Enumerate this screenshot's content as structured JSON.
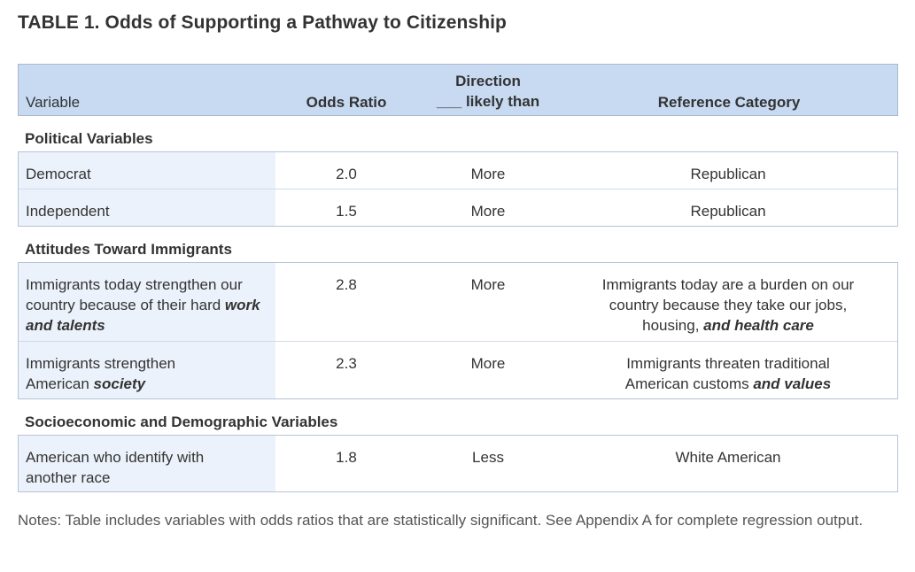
{
  "title": "TABLE 1. Odds of Supporting a Pathway to Citizenship",
  "header": {
    "variable": "Variable",
    "odds_ratio": "Odds Ratio",
    "direction_line1": "Direction",
    "direction_line2": "___ likely than",
    "reference": "Reference Category"
  },
  "sections": [
    {
      "title": "Political Variables",
      "rows": [
        {
          "var": "Democrat",
          "odds": "2.0",
          "dir": "More",
          "ref": "Republican"
        },
        {
          "var": "Independent",
          "odds": "1.5",
          "dir": "More",
          "ref": "Republican"
        }
      ]
    },
    {
      "title": "Attitudes Toward Immigrants",
      "rows": [
        {
          "var_plain": "Immigrants today strengthen our country because of their hard ",
          "var_em": "work and talents",
          "odds": "2.8",
          "dir": "More",
          "ref_plain": "Immigrants today are a burden on our country because they take our jobs, housing, ",
          "ref_em": "and health care"
        },
        {
          "var_plain": "Immigrants strengthen American ",
          "var_em": "society",
          "odds": "2.3",
          "dir": "More",
          "ref_plain": "Immigrants threaten traditional American customs ",
          "ref_em": "and values"
        }
      ]
    },
    {
      "title": "Socioeconomic and Demographic Variables",
      "rows": [
        {
          "var": "American who identify with another race",
          "odds": "1.8",
          "dir": "Less",
          "ref": "White American"
        }
      ]
    }
  ],
  "notes": "Notes: Table includes variables with odds ratios that are statistically significant. See Appendix A for complete regression output."
}
